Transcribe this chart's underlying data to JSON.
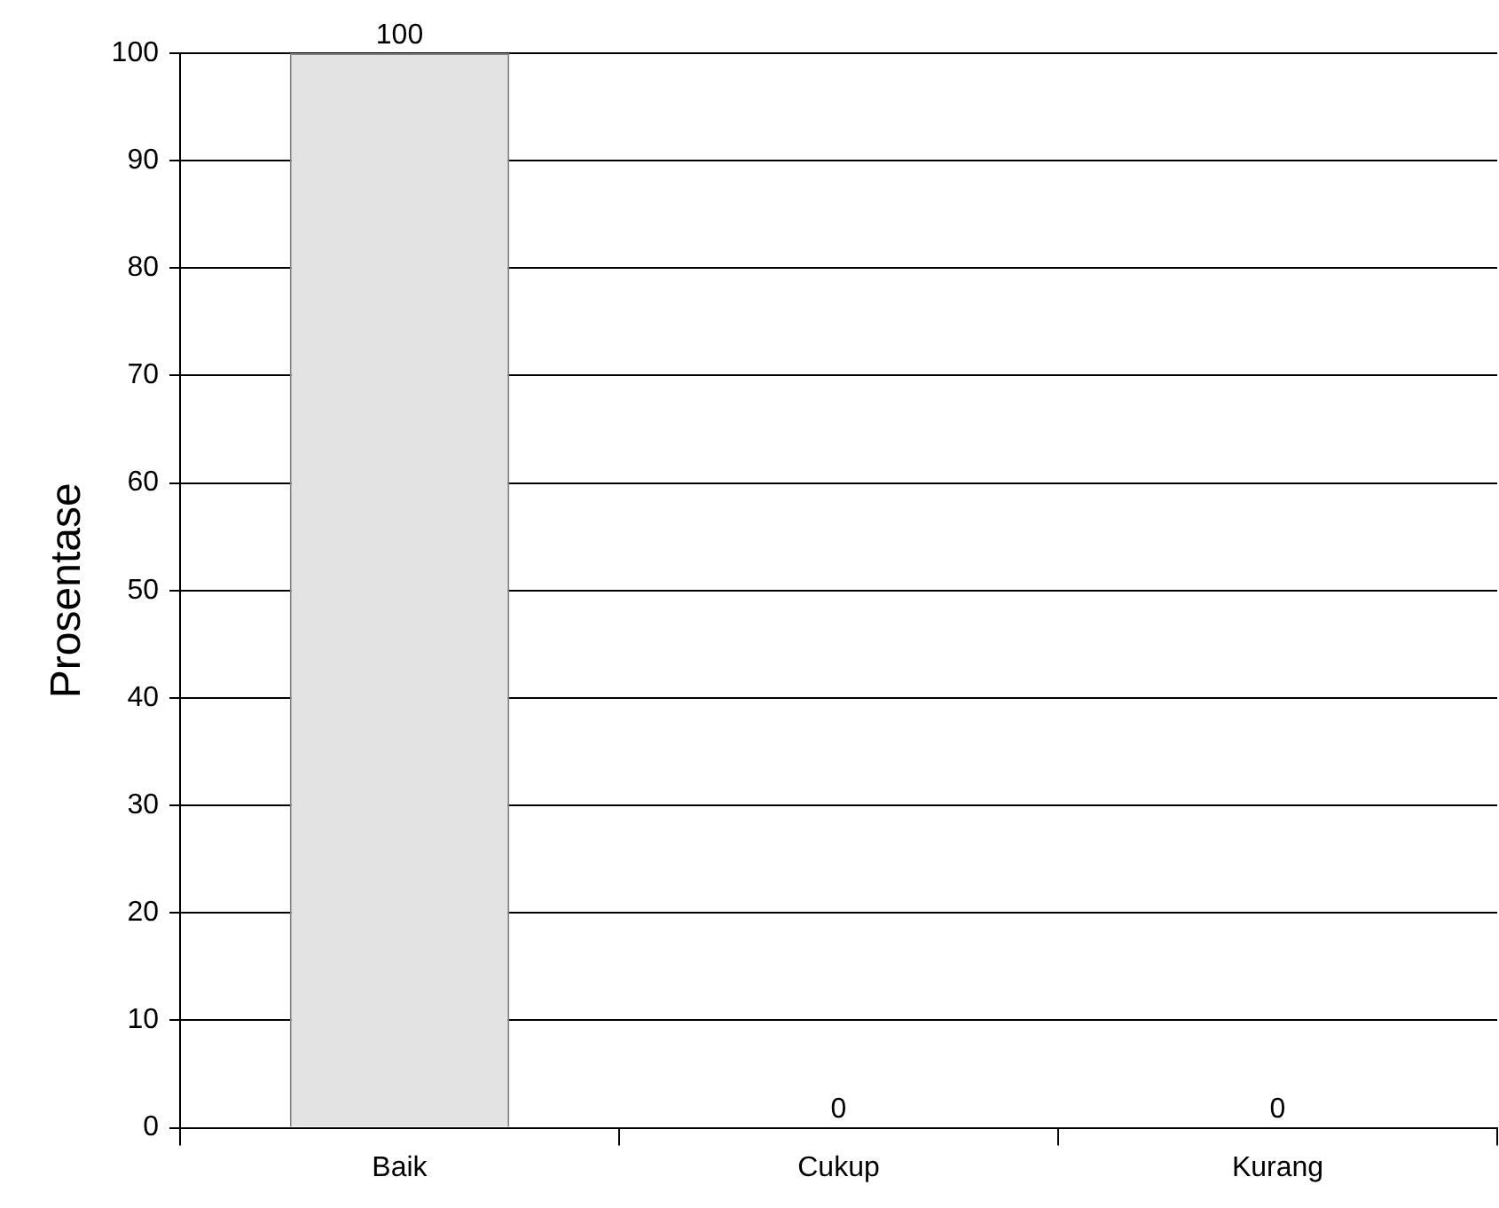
{
  "chart_data": {
    "type": "bar",
    "ylabel": "Prosentase",
    "categories": [
      "Baik",
      "Cukup",
      "Kurang"
    ],
    "values": [
      100,
      0,
      0
    ],
    "color": "#e3e3e3",
    "ylim": [
      0,
      100
    ],
    "yticks": [
      0,
      10,
      20,
      30,
      40,
      50,
      60,
      70,
      80,
      90,
      100
    ],
    "grid": "y",
    "data_labels": true,
    "legend": false
  }
}
